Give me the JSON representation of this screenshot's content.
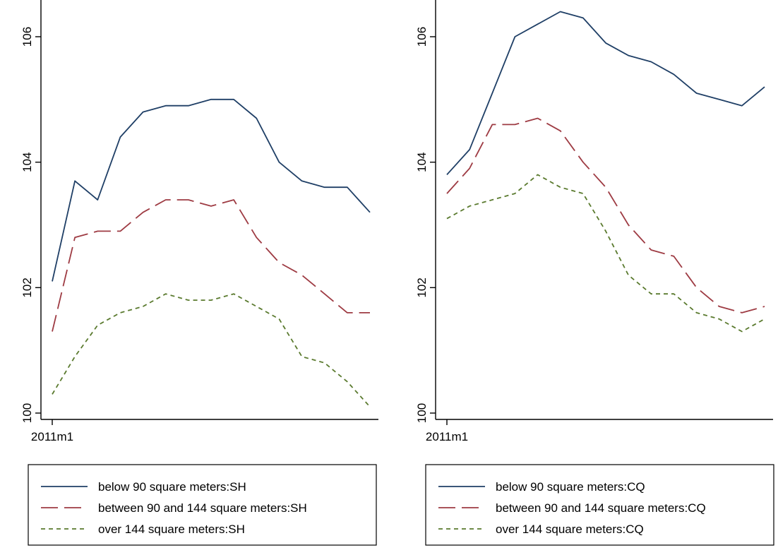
{
  "chart_data": [
    {
      "type": "line",
      "x_tick_labels": [
        "2011m1"
      ],
      "ylim": [
        100,
        106
      ],
      "y_ticks": [
        100,
        102,
        104,
        106
      ],
      "grid": false,
      "legend_position": "bottom",
      "series": [
        {
          "name": "below 90 square meters:SH",
          "color": "#1f3f66",
          "style": "solid",
          "values": [
            102.1,
            103.7,
            103.4,
            104.4,
            104.8,
            104.9,
            104.9,
            105.0,
            105.0,
            104.7,
            104.0,
            103.7,
            103.6,
            103.6,
            103.2
          ]
        },
        {
          "name": "between 90 and 144 square meters:SH",
          "color": "#9e3b43",
          "style": "longdash",
          "values": [
            101.3,
            102.8,
            102.9,
            102.9,
            103.2,
            103.4,
            103.4,
            103.3,
            103.4,
            102.8,
            102.4,
            102.2,
            101.9,
            101.6,
            101.6
          ]
        },
        {
          "name": "over 144 square meters:SH",
          "color": "#5a7a2e",
          "style": "shortdash",
          "values": [
            100.3,
            100.9,
            101.4,
            101.6,
            101.7,
            101.9,
            101.8,
            101.8,
            101.9,
            101.7,
            101.5,
            100.9,
            100.8,
            100.5,
            100.1
          ]
        }
      ]
    },
    {
      "type": "line",
      "x_tick_labels": [
        "2011m1"
      ],
      "ylim": [
        100,
        106
      ],
      "y_ticks": [
        100,
        102,
        104,
        106
      ],
      "grid": false,
      "legend_position": "bottom",
      "series": [
        {
          "name": "below 90 square meters:CQ",
          "color": "#1f3f66",
          "style": "solid",
          "values": [
            103.8,
            104.2,
            105.1,
            106.0,
            106.2,
            106.4,
            106.3,
            105.9,
            105.7,
            105.6,
            105.4,
            105.1,
            105.0,
            104.9,
            105.2
          ]
        },
        {
          "name": "between 90 and 144 square meters:CQ",
          "color": "#9e3b43",
          "style": "longdash",
          "values": [
            103.5,
            103.9,
            104.6,
            104.6,
            104.7,
            104.5,
            104.0,
            103.6,
            103.0,
            102.6,
            102.5,
            102.0,
            101.7,
            101.6,
            101.7
          ]
        },
        {
          "name": "over 144 square meters:CQ",
          "color": "#5a7a2e",
          "style": "shortdash",
          "values": [
            103.1,
            103.3,
            103.4,
            103.5,
            103.8,
            103.6,
            103.5,
            102.9,
            102.2,
            101.9,
            101.9,
            101.6,
            101.5,
            101.3,
            101.5
          ]
        }
      ]
    }
  ]
}
